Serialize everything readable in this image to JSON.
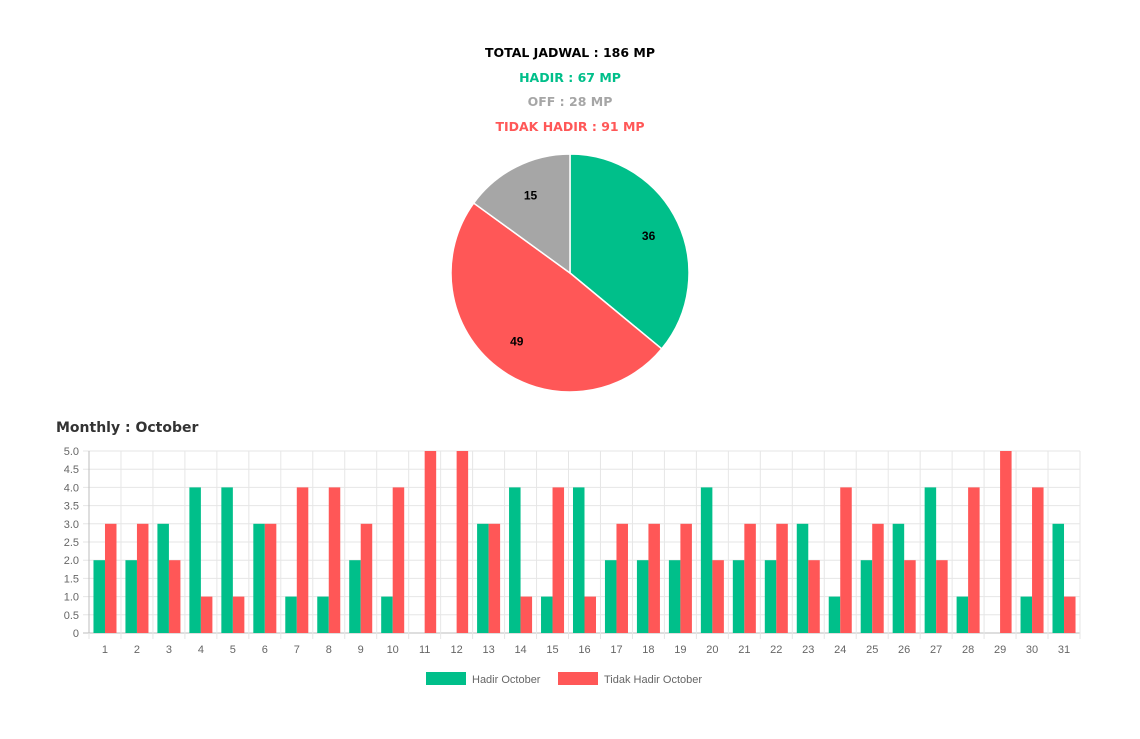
{
  "summary": {
    "total": "TOTAL JADWAL : 186 MP",
    "hadir": "HADIR : 67 MP",
    "off": "OFF : 28 MP",
    "tidak_hadir": "TIDAK HADIR : 91 MP"
  },
  "colors": {
    "hadir": "#00bf8a",
    "off": "#a6a6a6",
    "tidak_hadir": "#ff5757"
  },
  "monthly_title": "Monthly : October",
  "chart_data": [
    {
      "type": "pie",
      "slices": [
        {
          "key": "hadir",
          "value": 36,
          "color": "#00bf8a"
        },
        {
          "key": "tidak_hadir",
          "value": 49,
          "color": "#ff5757"
        },
        {
          "key": "off",
          "value": 15,
          "color": "#a6a6a6"
        }
      ]
    },
    {
      "type": "bar",
      "categories": [
        "1",
        "2",
        "3",
        "4",
        "5",
        "6",
        "7",
        "8",
        "9",
        "10",
        "11",
        "12",
        "13",
        "14",
        "15",
        "16",
        "17",
        "18",
        "19",
        "20",
        "21",
        "22",
        "23",
        "24",
        "25",
        "26",
        "27",
        "28",
        "29",
        "30",
        "31"
      ],
      "series": [
        {
          "name": "Hadir October",
          "color": "#00bf8a",
          "values": [
            2,
            2,
            3,
            4,
            4,
            3,
            1,
            1,
            2,
            1,
            0,
            0,
            3,
            4,
            1,
            4,
            2,
            2,
            2,
            4,
            2,
            2,
            3,
            1,
            2,
            3,
            4,
            1,
            0,
            1,
            3
          ]
        },
        {
          "name": "Tidak Hadir October",
          "color": "#ff5757",
          "values": [
            3,
            3,
            2,
            1,
            1,
            3,
            4,
            4,
            3,
            4,
            5,
            5,
            3,
            1,
            4,
            1,
            3,
            3,
            3,
            2,
            3,
            3,
            2,
            4,
            3,
            2,
            2,
            4,
            5,
            4,
            1
          ]
        }
      ],
      "ylim": [
        0,
        5
      ],
      "yticks": [
        "0",
        "0.5",
        "1.0",
        "1.5",
        "2.0",
        "2.5",
        "3.0",
        "3.5",
        "4.0",
        "4.5",
        "5.0"
      ],
      "grid": true,
      "legend": "bottom"
    }
  ]
}
